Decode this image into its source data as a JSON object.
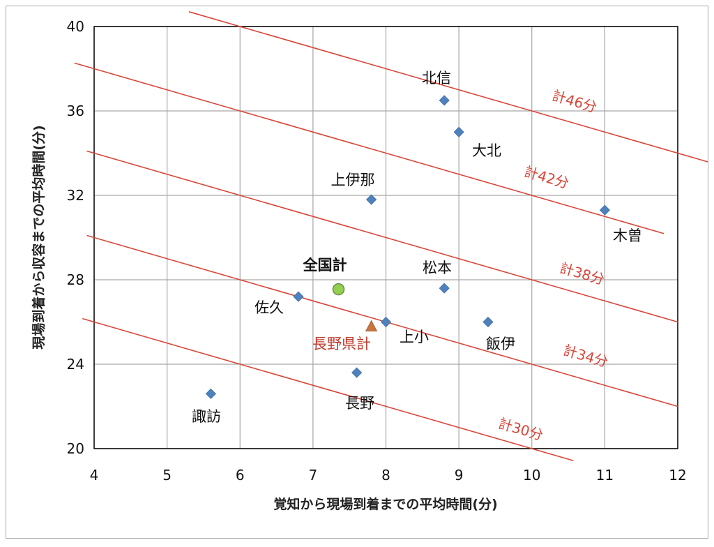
{
  "chart_data": {
    "type": "scatter",
    "title": "",
    "xlabel": "覚知から現場到着までの平均時間(分)",
    "ylabel": "現場到着から収容までの平均時間(分)",
    "xlim": [
      4,
      12
    ],
    "ylim": [
      20,
      40
    ],
    "x_ticks": [
      "4",
      "5",
      "6",
      "7",
      "8",
      "9",
      "10",
      "11",
      "12"
    ],
    "y_ticks": [
      "20",
      "24",
      "28",
      "32",
      "36",
      "40"
    ],
    "grid": true,
    "points": [
      {
        "label": "北信",
        "x": 8.8,
        "y": 36.5,
        "marker": "diamond"
      },
      {
        "label": "大北",
        "x": 9.0,
        "y": 35.0,
        "marker": "diamond"
      },
      {
        "label": "木曽",
        "x": 11.0,
        "y": 31.3,
        "marker": "diamond"
      },
      {
        "label": "上伊那",
        "x": 7.8,
        "y": 31.8,
        "marker": "diamond"
      },
      {
        "label": "松本",
        "x": 8.8,
        "y": 27.6,
        "marker": "diamond"
      },
      {
        "label": "佐久",
        "x": 6.8,
        "y": 27.2,
        "marker": "diamond"
      },
      {
        "label": "上小",
        "x": 8.0,
        "y": 26.0,
        "marker": "diamond"
      },
      {
        "label": "飯伊",
        "x": 9.4,
        "y": 26.0,
        "marker": "diamond"
      },
      {
        "label": "長野",
        "x": 7.6,
        "y": 23.6,
        "marker": "diamond"
      },
      {
        "label": "諏訪",
        "x": 5.6,
        "y": 22.6,
        "marker": "diamond"
      },
      {
        "label": "全国計",
        "x": 7.35,
        "y": 27.55,
        "marker": "circle"
      },
      {
        "label": "長野県計",
        "x": 7.8,
        "y": 25.8,
        "marker": "triangle"
      }
    ],
    "reference_lines": [
      {
        "label": "計46分",
        "total": 46,
        "x_range": [
          5.3,
          13.4
        ]
      },
      {
        "label": "計42分",
        "total": 42,
        "x_range": [
          3.73,
          11.81
        ]
      },
      {
        "label": "計38分",
        "total": 38,
        "x_range": [
          3.9,
          12
        ]
      },
      {
        "label": "計34分",
        "total": 34,
        "x_range": [
          3.9,
          12
        ]
      },
      {
        "label": "計30分",
        "total": 30,
        "x_range": [
          3.84,
          10.57
        ]
      }
    ],
    "colors": {
      "diamond": "#4f81bd",
      "circle": "#92d050",
      "triangle": "#c8763e",
      "reference_line": "#d9463a",
      "red_label": "#c0392b"
    }
  }
}
